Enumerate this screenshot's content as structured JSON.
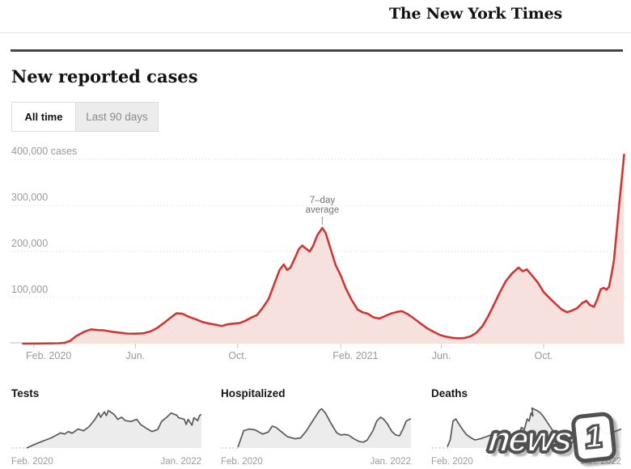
{
  "header": {
    "brand": "The New York Times"
  },
  "page": {
    "title": "New reported cases"
  },
  "toggle": {
    "all_time": "All time",
    "last_90": "Last 90 days"
  },
  "watermark": {
    "text": "news",
    "badge": "1"
  },
  "chart_data": [
    {
      "id": "main",
      "type": "area",
      "title": "New reported cases",
      "series_name": "7-day average of new reported cases",
      "legend_position": "none",
      "grid": "dotted horizontal",
      "ylim": [
        0,
        420000
      ],
      "y_ticks": [
        {
          "value": 400000,
          "label": "400,000 cases"
        },
        {
          "value": 300000,
          "label": "300,000"
        },
        {
          "value": 200000,
          "label": "200,000"
        },
        {
          "value": 100000,
          "label": "100,000"
        }
      ],
      "x_ticks": [
        {
          "date": "2020-02-01",
          "label": "Feb. 2020"
        },
        {
          "date": "2020-06-01",
          "label": "Jun."
        },
        {
          "date": "2020-10-01",
          "label": "Oct."
        },
        {
          "date": "2021-02-01",
          "label": "Feb. 2021"
        },
        {
          "date": "2021-06-01",
          "label": "Jun."
        },
        {
          "date": "2021-10-01",
          "label": "Oct."
        }
      ],
      "annotation": {
        "lines": [
          "7–day",
          "average"
        ],
        "date": "2021-01-10",
        "value": 251000
      },
      "points": [
        [
          "2020-01-19",
          200
        ],
        [
          "2020-02-10",
          300
        ],
        [
          "2020-03-01",
          800
        ],
        [
          "2020-03-08",
          1500
        ],
        [
          "2020-03-15",
          6000
        ],
        [
          "2020-03-22",
          16000
        ],
        [
          "2020-04-01",
          26000
        ],
        [
          "2020-04-09",
          31000
        ],
        [
          "2020-04-17",
          29500
        ],
        [
          "2020-04-24",
          29000
        ],
        [
          "2020-05-02",
          26500
        ],
        [
          "2020-05-12",
          24000
        ],
        [
          "2020-05-22",
          22000
        ],
        [
          "2020-06-01",
          21500
        ],
        [
          "2020-06-10",
          22500
        ],
        [
          "2020-06-19",
          26500
        ],
        [
          "2020-06-27",
          34000
        ],
        [
          "2020-07-05",
          45000
        ],
        [
          "2020-07-12",
          55000
        ],
        [
          "2020-07-20",
          66000
        ],
        [
          "2020-07-27",
          65000
        ],
        [
          "2020-08-04",
          58000
        ],
        [
          "2020-08-12",
          53000
        ],
        [
          "2020-08-20",
          47000
        ],
        [
          "2020-08-28",
          43500
        ],
        [
          "2020-09-05",
          41000
        ],
        [
          "2020-09-12",
          38500
        ],
        [
          "2020-09-19",
          42000
        ],
        [
          "2020-09-26",
          43500
        ],
        [
          "2020-10-03",
          44500
        ],
        [
          "2020-10-10",
          49500
        ],
        [
          "2020-10-17",
          56500
        ],
        [
          "2020-10-24",
          62000
        ],
        [
          "2020-10-31",
          78000
        ],
        [
          "2020-11-07",
          97000
        ],
        [
          "2020-11-13",
          126000
        ],
        [
          "2020-11-20",
          160000
        ],
        [
          "2020-11-25",
          172000
        ],
        [
          "2020-11-29",
          160000
        ],
        [
          "2020-12-03",
          165000
        ],
        [
          "2020-12-08",
          185000
        ],
        [
          "2020-12-13",
          205000
        ],
        [
          "2020-12-17",
          213000
        ],
        [
          "2020-12-21",
          207000
        ],
        [
          "2020-12-26",
          200000
        ],
        [
          "2020-12-30",
          212000
        ],
        [
          "2021-01-04",
          235000
        ],
        [
          "2021-01-10",
          251000
        ],
        [
          "2021-01-14",
          240000
        ],
        [
          "2021-01-20",
          205000
        ],
        [
          "2021-01-26",
          170000
        ],
        [
          "2021-02-01",
          148000
        ],
        [
          "2021-02-07",
          120000
        ],
        [
          "2021-02-14",
          95000
        ],
        [
          "2021-02-21",
          74000
        ],
        [
          "2021-02-27",
          68000
        ],
        [
          "2021-03-05",
          65000
        ],
        [
          "2021-03-12",
          57000
        ],
        [
          "2021-03-19",
          54500
        ],
        [
          "2021-03-26",
          60000
        ],
        [
          "2021-04-02",
          65500
        ],
        [
          "2021-04-09",
          69000
        ],
        [
          "2021-04-15",
          70500
        ],
        [
          "2021-04-22",
          64000
        ],
        [
          "2021-04-29",
          55000
        ],
        [
          "2021-05-07",
          44000
        ],
        [
          "2021-05-15",
          33500
        ],
        [
          "2021-05-23",
          25500
        ],
        [
          "2021-05-31",
          18500
        ],
        [
          "2021-06-08",
          14500
        ],
        [
          "2021-06-15",
          12500
        ],
        [
          "2021-06-22",
          11500
        ],
        [
          "2021-06-29",
          12500
        ],
        [
          "2021-07-06",
          16000
        ],
        [
          "2021-07-13",
          24000
        ],
        [
          "2021-07-20",
          38000
        ],
        [
          "2021-07-27",
          60000
        ],
        [
          "2021-08-03",
          86000
        ],
        [
          "2021-08-10",
          112000
        ],
        [
          "2021-08-17",
          136000
        ],
        [
          "2021-08-24",
          152000
        ],
        [
          "2021-09-01",
          165000
        ],
        [
          "2021-09-06",
          157000
        ],
        [
          "2021-09-11",
          161000
        ],
        [
          "2021-09-17",
          148000
        ],
        [
          "2021-09-24",
          133000
        ],
        [
          "2021-10-01",
          112000
        ],
        [
          "2021-10-08",
          99000
        ],
        [
          "2021-10-15",
          87000
        ],
        [
          "2021-10-22",
          75000
        ],
        [
          "2021-10-29",
          68000
        ],
        [
          "2021-11-04",
          72000
        ],
        [
          "2021-11-10",
          77000
        ],
        [
          "2021-11-16",
          88000
        ],
        [
          "2021-11-21",
          93000
        ],
        [
          "2021-11-25",
          84000
        ],
        [
          "2021-11-30",
          80000
        ],
        [
          "2021-12-04",
          96000
        ],
        [
          "2021-12-08",
          118000
        ],
        [
          "2021-12-12",
          121000
        ],
        [
          "2021-12-15",
          117000
        ],
        [
          "2021-12-18",
          123000
        ],
        [
          "2021-12-21",
          150000
        ],
        [
          "2021-12-24",
          182000
        ],
        [
          "2021-12-27",
          240000
        ],
        [
          "2021-12-30",
          300000
        ],
        [
          "2022-01-02",
          355000
        ],
        [
          "2022-01-05",
          410000
        ]
      ]
    },
    {
      "id": "tests",
      "type": "area",
      "title": "Tests",
      "x_labels": [
        "Feb. 2020",
        "Jan. 2022"
      ],
      "y_scale": "relative 0-100 (no axis shown)",
      "points": [
        [
          0.08,
          0
        ],
        [
          0.14,
          12
        ],
        [
          0.21,
          24
        ],
        [
          0.26,
          36
        ],
        [
          0.28,
          33
        ],
        [
          0.3,
          39
        ],
        [
          0.32,
          35
        ],
        [
          0.35,
          45
        ],
        [
          0.38,
          41
        ],
        [
          0.41,
          51
        ],
        [
          0.44,
          68
        ],
        [
          0.46,
          83
        ],
        [
          0.47,
          73
        ],
        [
          0.49,
          86
        ],
        [
          0.5,
          77
        ],
        [
          0.51,
          89
        ],
        [
          0.54,
          80
        ],
        [
          0.56,
          68
        ],
        [
          0.58,
          73
        ],
        [
          0.6,
          65
        ],
        [
          0.63,
          63
        ],
        [
          0.66,
          68
        ],
        [
          0.68,
          56
        ],
        [
          0.71,
          47
        ],
        [
          0.74,
          39
        ],
        [
          0.77,
          44
        ],
        [
          0.79,
          63
        ],
        [
          0.82,
          74
        ],
        [
          0.84,
          83
        ],
        [
          0.87,
          78
        ],
        [
          0.88,
          72
        ],
        [
          0.91,
          68
        ],
        [
          0.92,
          56
        ],
        [
          0.93,
          68
        ],
        [
          0.95,
          54
        ],
        [
          0.96,
          72
        ],
        [
          0.98,
          65
        ],
        [
          0.99,
          77
        ],
        [
          1.0,
          80
        ]
      ]
    },
    {
      "id": "hospitalized",
      "type": "area",
      "title": "Hospitalized",
      "x_labels": [
        "Feb. 2020",
        "Jan. 2022"
      ],
      "y_scale": "relative 0-100 (no axis shown)",
      "points": [
        [
          0.09,
          2
        ],
        [
          0.12,
          41
        ],
        [
          0.15,
          45
        ],
        [
          0.18,
          43
        ],
        [
          0.2,
          38
        ],
        [
          0.22,
          33
        ],
        [
          0.25,
          38
        ],
        [
          0.27,
          52
        ],
        [
          0.29,
          49
        ],
        [
          0.32,
          38
        ],
        [
          0.35,
          27
        ],
        [
          0.39,
          22
        ],
        [
          0.42,
          24
        ],
        [
          0.45,
          41
        ],
        [
          0.49,
          69
        ],
        [
          0.52,
          90
        ],
        [
          0.53,
          93
        ],
        [
          0.55,
          83
        ],
        [
          0.58,
          58
        ],
        [
          0.61,
          36
        ],
        [
          0.63,
          31
        ],
        [
          0.65,
          32
        ],
        [
          0.67,
          31
        ],
        [
          0.7,
          22
        ],
        [
          0.73,
          15
        ],
        [
          0.75,
          14
        ],
        [
          0.77,
          19
        ],
        [
          0.8,
          41
        ],
        [
          0.82,
          64
        ],
        [
          0.84,
          73
        ],
        [
          0.855,
          69
        ],
        [
          0.875,
          58
        ],
        [
          0.9,
          39
        ],
        [
          0.92,
          31
        ],
        [
          0.94,
          29
        ],
        [
          0.96,
          47
        ],
        [
          0.975,
          64
        ],
        [
          1.0,
          70
        ]
      ]
    },
    {
      "id": "deaths",
      "type": "area",
      "title": "Deaths",
      "x_labels": [
        "Feb. 2020",
        "Jan. 2022"
      ],
      "y_scale": "relative 0-100 (no axis shown)",
      "points": [
        [
          0.085,
          3
        ],
        [
          0.1,
          19
        ],
        [
          0.115,
          64
        ],
        [
          0.13,
          69
        ],
        [
          0.14,
          61
        ],
        [
          0.165,
          44
        ],
        [
          0.185,
          32
        ],
        [
          0.21,
          24
        ],
        [
          0.23,
          19
        ],
        [
          0.26,
          22
        ],
        [
          0.29,
          27
        ],
        [
          0.315,
          31
        ],
        [
          0.34,
          27
        ],
        [
          0.37,
          22
        ],
        [
          0.4,
          19
        ],
        [
          0.425,
          24
        ],
        [
          0.45,
          36
        ],
        [
          0.46,
          31
        ],
        [
          0.475,
          49
        ],
        [
          0.49,
          44
        ],
        [
          0.505,
          69
        ],
        [
          0.515,
          64
        ],
        [
          0.525,
          83
        ],
        [
          0.535,
          76
        ],
        [
          0.53,
          95
        ],
        [
          0.56,
          88
        ],
        [
          0.575,
          83
        ],
        [
          0.59,
          75
        ],
        [
          0.615,
          58
        ],
        [
          0.64,
          41
        ],
        [
          0.66,
          32
        ],
        [
          0.68,
          27
        ],
        [
          0.71,
          18
        ],
        [
          0.74,
          12
        ],
        [
          0.78,
          28
        ],
        [
          0.82,
          48
        ],
        [
          0.85,
          61
        ],
        [
          0.87,
          58
        ],
        [
          0.9,
          42
        ],
        [
          0.93,
          32
        ],
        [
          0.96,
          38
        ],
        [
          1.0,
          45
        ]
      ]
    }
  ]
}
